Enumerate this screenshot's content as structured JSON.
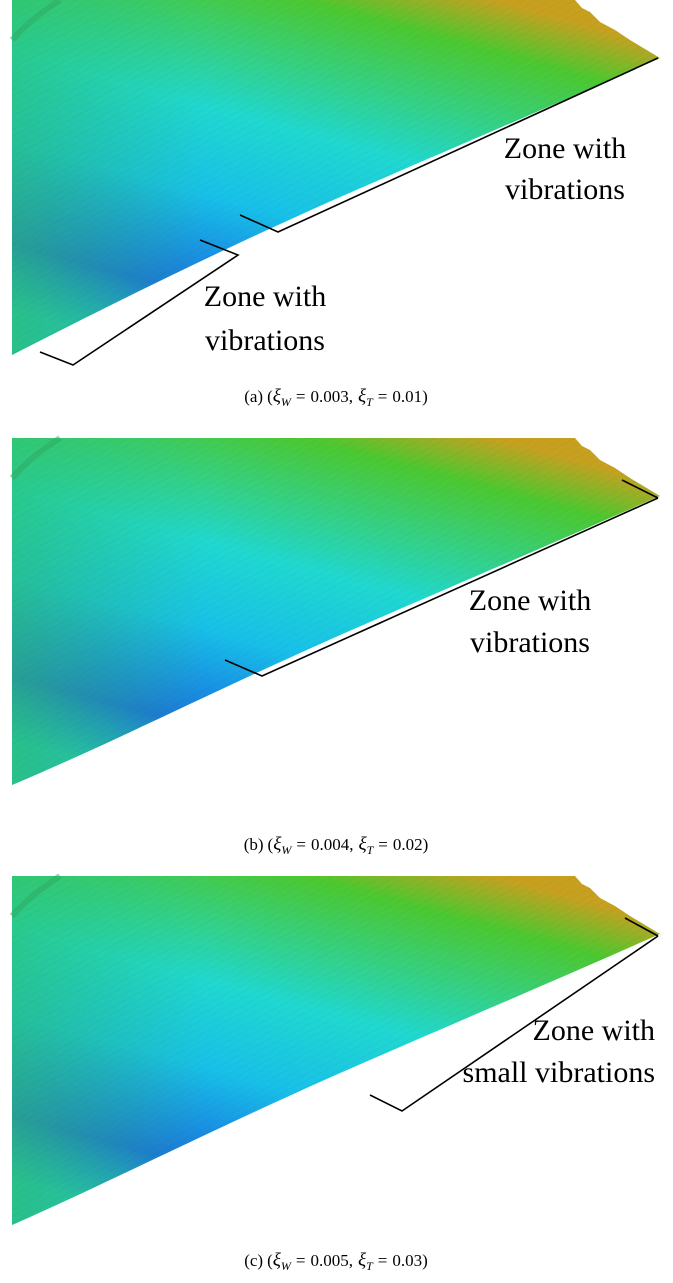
{
  "panels": [
    {
      "annotations": [
        [
          "Zone with",
          "vibrations"
        ],
        [
          "Zone with",
          "vibrations"
        ]
      ],
      "caption": {
        "label": "(a)",
        "open": "(",
        "terms": [
          {
            "symbol": "ξ",
            "subscript": "W",
            "relation": "=",
            "value": "0.003"
          },
          {
            "symbol": "ξ",
            "subscript": "T",
            "relation": "=",
            "value": "0.01"
          }
        ],
        "separator": ",",
        "close": ")"
      }
    },
    {
      "annotations": [
        [
          "Zone with",
          "vibrations"
        ]
      ],
      "caption": {
        "label": "(b)",
        "open": "(",
        "terms": [
          {
            "symbol": "ξ",
            "subscript": "W",
            "relation": "=",
            "value": "0.004"
          },
          {
            "symbol": "ξ",
            "subscript": "T",
            "relation": "=",
            "value": "0.02"
          }
        ],
        "separator": ",",
        "close": ")"
      }
    },
    {
      "annotations": [
        [
          "Zone with",
          "small vibrations"
        ]
      ],
      "caption": {
        "label": "(c)",
        "open": "(",
        "terms": [
          {
            "symbol": "ξ",
            "subscript": "W",
            "relation": "=",
            "value": "0.005"
          },
          {
            "symbol": "ξ",
            "subscript": "T",
            "relation": "=",
            "value": "0.03"
          }
        ],
        "separator": ",",
        "close": ")"
      }
    }
  ]
}
